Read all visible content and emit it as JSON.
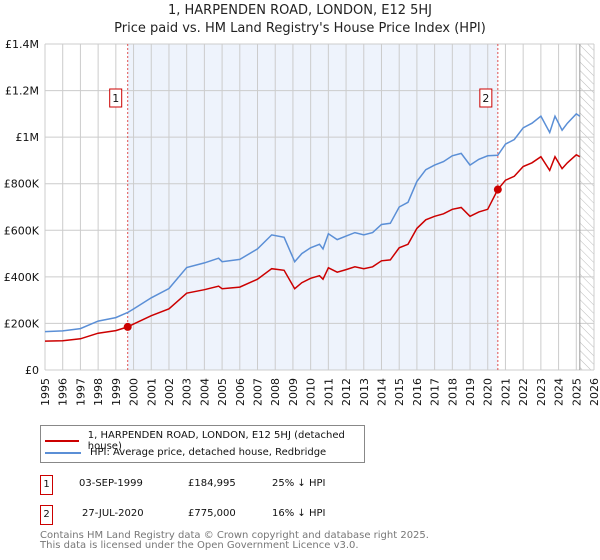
{
  "chart_data": {
    "type": "line",
    "title": "1, HARPENDEN ROAD, LONDON, E12 5HJ",
    "subtitle": "Price paid vs. HM Land Registry's House Price Index (HPI)",
    "xlabel": "",
    "ylabel": "",
    "xlim": [
      1995,
      2026
    ],
    "ylim": [
      0,
      1400
    ],
    "value_unit": "GBP thousands",
    "grid": true,
    "y_ticks": [
      {
        "v": 0,
        "label": "£0"
      },
      {
        "v": 200,
        "label": "£200K"
      },
      {
        "v": 400,
        "label": "£400K"
      },
      {
        "v": 600,
        "label": "£600K"
      },
      {
        "v": 800,
        "label": "£800K"
      },
      {
        "v": 1000,
        "label": "£1M"
      },
      {
        "v": 1200,
        "label": "£1.2M"
      },
      {
        "v": 1400,
        "label": "£1.4M"
      }
    ],
    "x_ticks": [
      "1995",
      "1996",
      "1997",
      "1998",
      "1999",
      "2000",
      "2001",
      "2002",
      "2003",
      "2004",
      "2005",
      "2006",
      "2007",
      "2008",
      "2009",
      "2010",
      "2011",
      "2012",
      "2013",
      "2014",
      "2015",
      "2016",
      "2017",
      "2018",
      "2019",
      "2020",
      "2021",
      "2022",
      "2023",
      "2024",
      "2025",
      "2026"
    ],
    "x": [
      1995,
      1996,
      1997,
      1998,
      1999,
      1999.67,
      2000,
      2001,
      2002,
      2003,
      2004,
      2004.8,
      2005,
      2006,
      2007,
      2007.8,
      2008.5,
      2009.1,
      2009.5,
      2010,
      2010.5,
      2010.7,
      2011,
      2011.5,
      2012,
      2012.5,
      2013,
      2013.5,
      2014,
      2014.5,
      2015,
      2015.5,
      2016,
      2016.5,
      2017,
      2017.5,
      2018,
      2018.5,
      2019,
      2019.5,
      2020,
      2020.57,
      2021,
      2021.5,
      2022,
      2022.5,
      2023,
      2023.5,
      2023.8,
      2024.2,
      2024.5,
      2025,
      2025.2
    ],
    "series": [
      {
        "name": "1, HARPENDEN ROAD, LONDON, E12 5HJ (detached house)",
        "color": "#cc0000",
        "values": [
          124,
          126,
          134,
          158,
          169,
          185,
          197,
          233,
          263,
          330,
          345,
          360,
          349,
          356,
          390,
          435,
          428,
          349,
          375,
          394,
          405,
          390,
          439,
          420,
          431,
          443,
          435,
          443,
          469,
          473,
          525,
          540,
          608,
          645,
          660,
          671,
          690,
          698,
          660,
          679,
          690,
          775,
          815,
          832,
          874,
          890,
          916,
          857,
          916,
          865,
          890,
          924,
          916
        ]
      },
      {
        "name": "HPI: Average price, detached house, Redbridge",
        "color": "#5b8fd6",
        "values": [
          165,
          168,
          178,
          210,
          225,
          247,
          262,
          310,
          350,
          440,
          460,
          480,
          465,
          475,
          520,
          580,
          570,
          465,
          500,
          525,
          540,
          520,
          585,
          560,
          575,
          590,
          580,
          590,
          625,
          630,
          700,
          720,
          810,
          860,
          880,
          895,
          920,
          930,
          880,
          905,
          920,
          922,
          970,
          990,
          1040,
          1060,
          1090,
          1020,
          1090,
          1030,
          1060,
          1100,
          1090
        ]
      }
    ],
    "shaded_range": [
      1999.67,
      2020.57
    ],
    "forecast_hatch_from": 2025.2,
    "annotations": [
      {
        "label": "1",
        "x": 1999.67,
        "y": 185
      },
      {
        "label": "2",
        "x": 2020.57,
        "y": 775
      }
    ],
    "legend_position": "below"
  },
  "sales": [
    {
      "num": "1",
      "date": "03-SEP-1999",
      "price": "£184,995",
      "hpi": "25% ↓ HPI"
    },
    {
      "num": "2",
      "date": "27-JUL-2020",
      "price": "£775,000",
      "hpi": "16% ↓ HPI"
    }
  ],
  "footer": {
    "line1": "Contains HM Land Registry data © Crown copyright and database right 2025.",
    "line2": "This data is licensed under the Open Government Licence v3.0."
  }
}
